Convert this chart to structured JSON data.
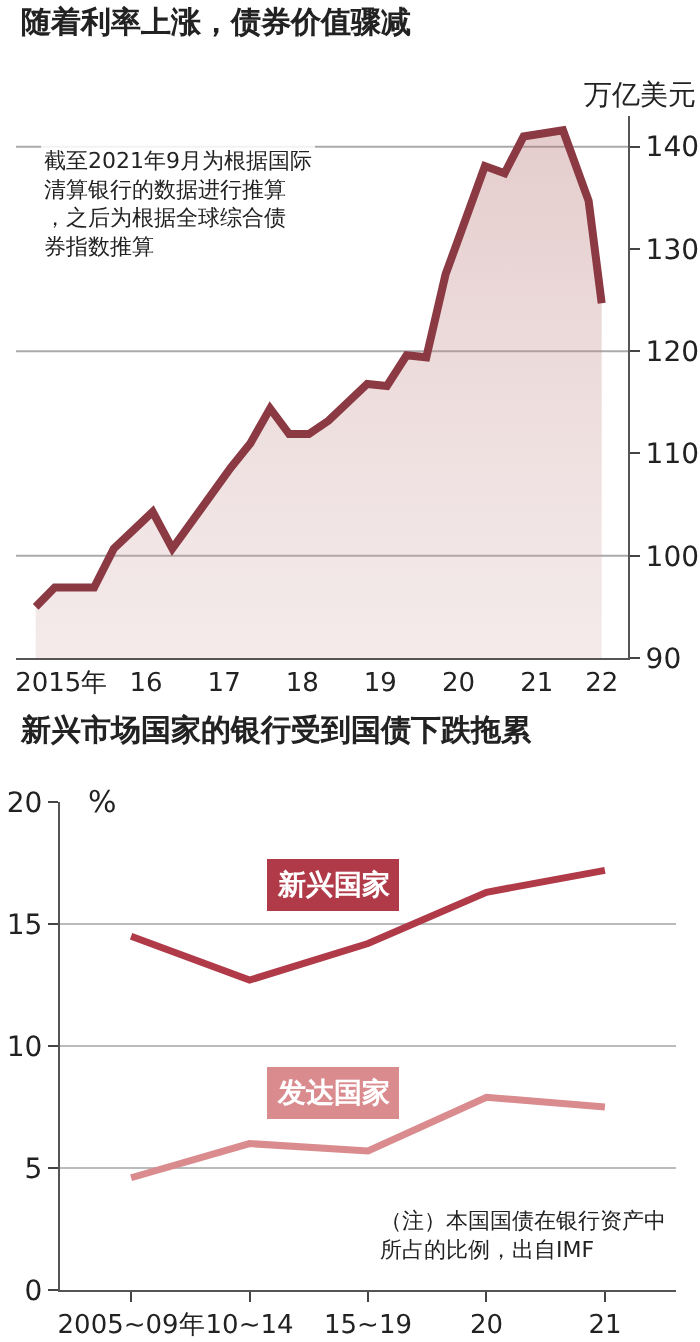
{
  "chart_data": [
    {
      "type": "area",
      "title": "随着利率上涨，债券价值骤减",
      "ylabel": "万亿美元",
      "x": [
        "2015-02",
        "2015-05",
        "2015-11",
        "2016-02",
        "2016-08",
        "2016-11",
        "2017-08",
        "2017-11",
        "2018-02",
        "2018-05",
        "2018-08",
        "2018-11",
        "2019-05",
        "2019-08",
        "2019-11",
        "2020-02",
        "2020-05",
        "2020-11",
        "2021-02",
        "2021-05",
        "2021-11",
        "2022-03",
        "2022-05"
      ],
      "series": [
        {
          "color": "#8b3a44",
          "values": [
            95.0,
            96.9,
            96.9,
            100.7,
            104.3,
            100.7,
            108.6,
            111.0,
            114.4,
            111.9,
            111.9,
            113.2,
            116.8,
            116.6,
            119.6,
            119.4,
            127.5,
            138.1,
            137.4,
            141.0,
            141.6,
            134.7,
            124.7
          ]
        }
      ],
      "xlim": [
        "2014-11",
        "2022-09"
      ],
      "ylim": [
        90,
        143
      ],
      "xticks": [
        {
          "value": "2015-06",
          "label": "2015年"
        },
        {
          "value": "2016-07",
          "label": "16"
        },
        {
          "value": "2017-07",
          "label": "17"
        },
        {
          "value": "2018-07",
          "label": "18"
        },
        {
          "value": "2019-07",
          "label": "19"
        },
        {
          "value": "2020-07",
          "label": "20"
        },
        {
          "value": "2021-07",
          "label": "21"
        },
        {
          "value": "2022-05",
          "label": "22"
        }
      ],
      "yticks": [
        90,
        100,
        110,
        120,
        130,
        140
      ],
      "ref_lines": [
        {
          "axis": "y",
          "value": 100,
          "color": "#aaaaaa"
        },
        {
          "axis": "y",
          "value": 120,
          "color": "#aaaaaa"
        },
        {
          "axis": "y",
          "value": 140,
          "color": "#aaaaaa"
        }
      ],
      "annotations": [
        "截至2021年9月为根据国际清算银行的数据进行推算，之后为根据全球综合债券指数推算"
      ],
      "grid": false,
      "legend": false,
      "marker": "none"
    },
    {
      "type": "line",
      "title": "新兴市场国家的银行受到国债下跌拖累",
      "ylabel": "%",
      "categories": [
        "2005~09年",
        "10~14",
        "15~19",
        "20",
        "21"
      ],
      "series": [
        {
          "name": "新兴国家",
          "color": "#b03a48",
          "values": [
            14.5,
            12.7,
            14.2,
            16.3,
            17.2
          ]
        },
        {
          "name": "发达国家",
          "color": "#d98b8e",
          "values": [
            4.6,
            6.0,
            5.7,
            7.9,
            7.5
          ]
        }
      ],
      "ylim": [
        0,
        20
      ],
      "yticks": [
        0,
        5,
        10,
        15,
        20
      ],
      "annotations": [
        "（注）本国国债在银行资产中所占的比例，出自IMF"
      ],
      "grid": "y",
      "legend": false,
      "marker": "none"
    }
  ]
}
